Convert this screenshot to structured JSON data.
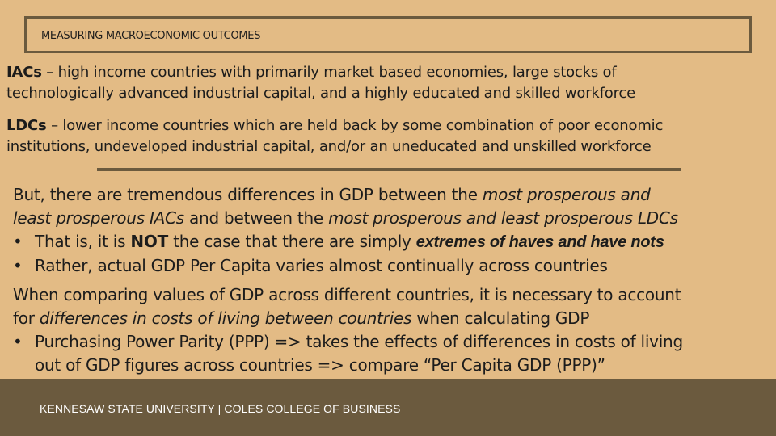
{
  "header": {
    "title": "MEASURING MACROECONOMIC OUTCOMES"
  },
  "definitions": {
    "iacs": {
      "term": "IACs",
      "text_line1": " – high income countries with primarily market based economies, large stocks of",
      "text_line2": "technologically advanced industrial capital, and a highly educated and skilled workforce"
    },
    "ldcs": {
      "term": "LDCs",
      "text_line1": " – lower income countries which are held back by some combination of poor economic",
      "text_line2": "institutions, undeveloped industrial capital, and/or an uneducated and unskilled workforce"
    }
  },
  "body": {
    "p1_a": "But, there are tremendous differences in GDP between the ",
    "p1_b": "most prosperous and",
    "p1_c": "least prosperous IACs",
    "p1_d": " and between the ",
    "p1_e": "most prosperous and least prosperous LDCs",
    "bullet_char": "•",
    "b1_a": "That is, it is ",
    "b1_b": "NOT",
    "b1_c": " the case that there are simply ",
    "b1_d": "extremes of haves and have nots",
    "b2": "Rather, actual GDP Per Capita varies almost continually across countries",
    "p2_line1": "When comparing values of GDP across different countries, it is necessary to account",
    "p2_b": "for ",
    "p2_c": "differences in costs of living between countries",
    "p2_d": " when calculating GDP",
    "b3_line1": "Purchasing Power Parity (PPP) => takes the effects of differences in costs of living",
    "b3_line2": "out of GDP figures across countries => compare “Per Capita GDP (PPP)”"
  },
  "footer": {
    "text": "KENNESAW STATE UNIVERSITY  |  COLES COLLEGE OF BUSINESS"
  },
  "colors": {
    "background": "#e3bb85",
    "accent": "#6b5a3e",
    "footer_text": "#ffffff"
  }
}
